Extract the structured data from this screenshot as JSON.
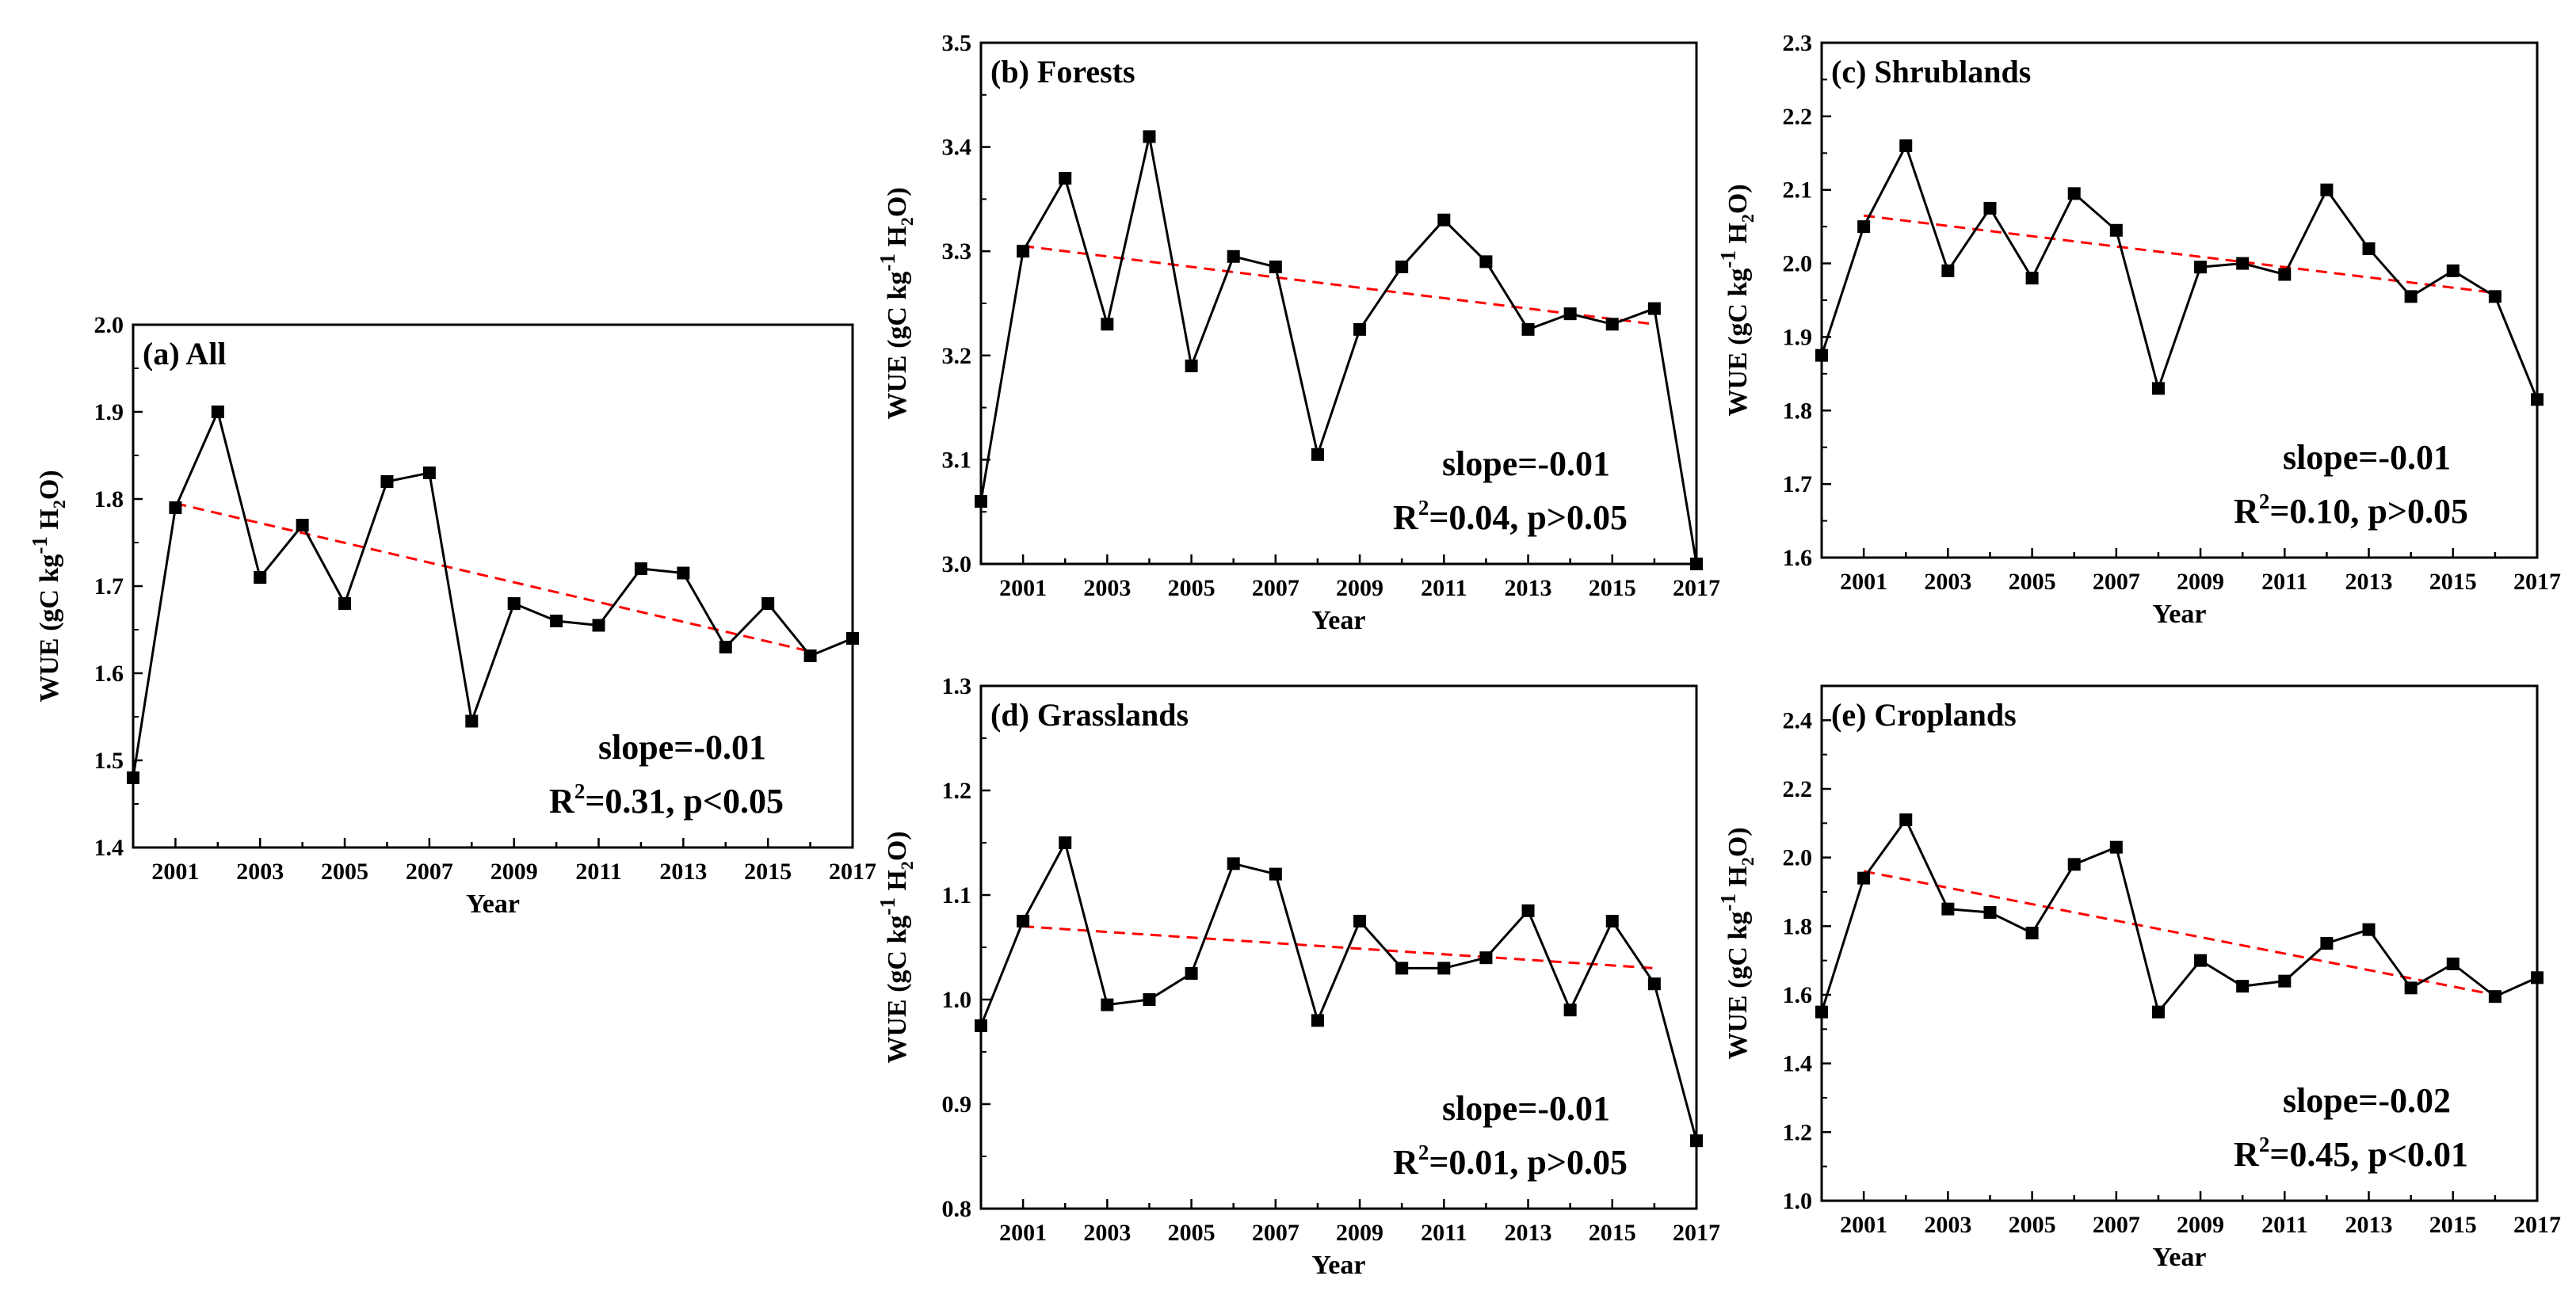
{
  "chart_data": [
    {
      "type": "line",
      "title": "(a) All",
      "xlabel": "Year",
      "ylabel": "WUE (gC kg-1 H2O)",
      "ylabel_parts": [
        "WUE (gC kg",
        "-1",
        " H",
        "2",
        "O)"
      ],
      "xlim": [
        2000,
        2017
      ],
      "ylim": [
        1.4,
        2.0
      ],
      "xticks": [
        2001,
        2003,
        2005,
        2007,
        2009,
        2011,
        2013,
        2015,
        2017
      ],
      "yticks": [
        1.4,
        1.5,
        1.6,
        1.7,
        1.8,
        1.9,
        2.0
      ],
      "ytick_labels": [
        "1.4",
        "1.5",
        "1.6",
        "1.7",
        "1.8",
        "1.9",
        "2.0"
      ],
      "x": [
        2000,
        2001,
        2002,
        2003,
        2004,
        2005,
        2006,
        2007,
        2008,
        2009,
        2010,
        2011,
        2012,
        2013,
        2014,
        2015,
        2016,
        2017
      ],
      "values": [
        1.48,
        1.79,
        1.9,
        1.71,
        1.77,
        1.68,
        1.82,
        1.83,
        1.545,
        1.68,
        1.66,
        1.655,
        1.72,
        1.715,
        1.63,
        1.68,
        1.62,
        1.64
      ],
      "trend": {
        "x": [
          2001,
          2016
        ],
        "y": [
          1.795,
          1.625
        ],
        "color": "#ff0000",
        "style": "dashed"
      },
      "series_color": "#000000",
      "annotation": {
        "slope": "slope=-0.01",
        "r2_prefix": "R",
        "r2_exp": "2",
        "r2_rest": "=0.31, p<0.05"
      }
    },
    {
      "type": "line",
      "title": "(b) Forests",
      "xlabel": "Year",
      "ylabel": "WUE (gC kg-1 H2O)",
      "ylabel_parts": [
        "WUE (gC kg",
        "-1",
        " H",
        "2",
        "O)"
      ],
      "xlim": [
        2000,
        2017
      ],
      "ylim": [
        3.0,
        3.5
      ],
      "xticks": [
        2001,
        2003,
        2005,
        2007,
        2009,
        2011,
        2013,
        2015,
        2017
      ],
      "yticks": [
        3.0,
        3.1,
        3.2,
        3.3,
        3.4,
        3.5
      ],
      "ytick_labels": [
        "3.0",
        "3.1",
        "3.2",
        "3.3",
        "3.4",
        "3.5"
      ],
      "x": [
        2000,
        2001,
        2002,
        2003,
        2004,
        2005,
        2006,
        2007,
        2008,
        2009,
        2010,
        2011,
        2012,
        2013,
        2014,
        2015,
        2016,
        2017
      ],
      "values": [
        3.06,
        3.3,
        3.37,
        3.23,
        3.41,
        3.19,
        3.295,
        3.285,
        3.105,
        3.225,
        3.285,
        3.33,
        3.29,
        3.225,
        3.24,
        3.23,
        3.245,
        3.0
      ],
      "trend": {
        "x": [
          2001,
          2016
        ],
        "y": [
          3.305,
          3.23
        ],
        "color": "#ff0000",
        "style": "dashed"
      },
      "series_color": "#000000",
      "annotation": {
        "slope": "slope=-0.01",
        "r2_prefix": "R",
        "r2_exp": "2",
        "r2_rest": "=0.04, p>0.05"
      }
    },
    {
      "type": "line",
      "title": "(c) Shrublands",
      "xlabel": "Year",
      "ylabel": "WUE (gC kg-1 H2O)",
      "ylabel_parts": [
        "WUE (gC kg",
        "-1",
        " H",
        "2",
        "O)"
      ],
      "xlim": [
        2000,
        2017
      ],
      "ylim": [
        1.6,
        2.3
      ],
      "xticks": [
        2001,
        2003,
        2005,
        2007,
        2009,
        2011,
        2013,
        2015,
        2017
      ],
      "yticks": [
        1.6,
        1.7,
        1.8,
        1.9,
        2.0,
        2.1,
        2.2,
        2.3
      ],
      "ytick_labels": [
        "1.6",
        "1.7",
        "1.8",
        "1.9",
        "2.0",
        "2.1",
        "2.2",
        "2.3"
      ],
      "x": [
        2000,
        2001,
        2002,
        2003,
        2004,
        2005,
        2006,
        2007,
        2008,
        2009,
        2010,
        2011,
        2012,
        2013,
        2014,
        2015,
        2016,
        2017
      ],
      "values": [
        1.875,
        2.05,
        2.16,
        1.99,
        2.075,
        1.98,
        2.095,
        2.045,
        1.83,
        1.995,
        2.0,
        1.985,
        2.1,
        2.02,
        1.955,
        1.99,
        1.955,
        1.815
      ],
      "trend": {
        "x": [
          2001,
          2016
        ],
        "y": [
          2.065,
          1.96
        ],
        "color": "#ff0000",
        "style": "dashed"
      },
      "series_color": "#000000",
      "annotation": {
        "slope": "slope=-0.01",
        "r2_prefix": "R",
        "r2_exp": "2",
        "r2_rest": "=0.10, p>0.05"
      }
    },
    {
      "type": "line",
      "title": "(d) Grasslands",
      "xlabel": "Year",
      "ylabel": "WUE (gC kg-1 H2O)",
      "ylabel_parts": [
        "WUE (gC kg",
        "-1",
        " H",
        "2",
        "O)"
      ],
      "xlim": [
        2000,
        2017
      ],
      "ylim": [
        0.8,
        1.3
      ],
      "xticks": [
        2001,
        2003,
        2005,
        2007,
        2009,
        2011,
        2013,
        2015,
        2017
      ],
      "yticks": [
        0.8,
        0.9,
        1.0,
        1.1,
        1.2,
        1.3
      ],
      "ytick_labels": [
        "0.8",
        "0.9",
        "1.0",
        "1.1",
        "1.2",
        "1.3"
      ],
      "x": [
        2000,
        2001,
        2002,
        2003,
        2004,
        2005,
        2006,
        2007,
        2008,
        2009,
        2010,
        2011,
        2012,
        2013,
        2014,
        2015,
        2016,
        2017
      ],
      "values": [
        0.975,
        1.075,
        1.15,
        0.995,
        1.0,
        1.025,
        1.13,
        1.12,
        0.98,
        1.075,
        1.03,
        1.03,
        1.04,
        1.085,
        0.99,
        1.075,
        1.015,
        0.865
      ],
      "trend": {
        "x": [
          2001,
          2016
        ],
        "y": [
          1.07,
          1.03
        ],
        "color": "#ff0000",
        "style": "dashed"
      },
      "series_color": "#000000",
      "annotation": {
        "slope": "slope=-0.01",
        "r2_prefix": "R",
        "r2_exp": "2",
        "r2_rest": "=0.01, p>0.05"
      }
    },
    {
      "type": "line",
      "title": "(e) Croplands",
      "xlabel": "Year",
      "ylabel": "WUE (gC kg-1 H2O)",
      "ylabel_parts": [
        "WUE (gC kg",
        "-1",
        " H",
        "2",
        "O)"
      ],
      "xlim": [
        2000,
        2017
      ],
      "ylim": [
        1.0,
        2.5
      ],
      "xticks": [
        2001,
        2003,
        2005,
        2007,
        2009,
        2011,
        2013,
        2015,
        2017
      ],
      "yticks": [
        1.0,
        1.2,
        1.4,
        1.6,
        1.8,
        2.0,
        2.2,
        2.4
      ],
      "ytick_labels": [
        "1.0",
        "1.2",
        "1.4",
        "1.6",
        "1.8",
        "2.0",
        "2.2",
        "2.4"
      ],
      "x": [
        2000,
        2001,
        2002,
        2003,
        2004,
        2005,
        2006,
        2007,
        2008,
        2009,
        2010,
        2011,
        2012,
        2013,
        2014,
        2015,
        2016,
        2017
      ],
      "values": [
        1.55,
        1.94,
        2.11,
        1.85,
        1.84,
        1.78,
        1.98,
        2.03,
        1.55,
        1.7,
        1.625,
        1.64,
        1.75,
        1.79,
        1.62,
        1.69,
        1.595,
        1.65
      ],
      "trend": {
        "x": [
          2001,
          2016
        ],
        "y": [
          1.96,
          1.6
        ],
        "color": "#ff0000",
        "style": "dashed"
      },
      "series_color": "#000000",
      "annotation": {
        "slope": "slope=-0.02",
        "r2_prefix": "R",
        "r2_exp": "2",
        "r2_rest": "=0.45, p<0.01"
      }
    }
  ]
}
